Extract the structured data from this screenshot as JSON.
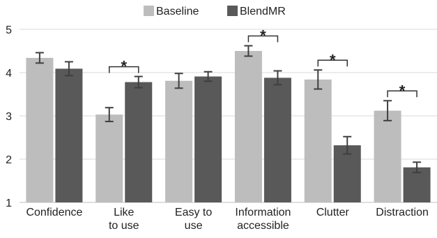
{
  "chart_data": {
    "type": "bar",
    "categories": [
      [
        "Confidence"
      ],
      [
        "Like",
        "to use"
      ],
      [
        "Easy to",
        "use"
      ],
      [
        "Information",
        "accessible"
      ],
      [
        "Clutter"
      ],
      [
        "Distraction"
      ]
    ],
    "series": [
      {
        "name": "Baseline",
        "color": "#bdbdbd",
        "values": [
          4.34,
          3.03,
          3.81,
          4.5,
          3.84,
          3.12
        ],
        "errors": [
          0.12,
          0.16,
          0.17,
          0.12,
          0.22,
          0.23
        ]
      },
      {
        "name": "BlendMR",
        "color": "#595959",
        "values": [
          4.09,
          3.78,
          3.91,
          3.88,
          2.32,
          1.81
        ],
        "errors": [
          0.16,
          0.13,
          0.11,
          0.16,
          0.2,
          0.12
        ]
      }
    ],
    "ylim": [
      1,
      5
    ],
    "yticks": [
      "1",
      "2",
      "3",
      "4",
      "5"
    ],
    "grid": true,
    "legend_position": "top",
    "significance": [
      {
        "category_index": 1,
        "label": "*"
      },
      {
        "category_index": 3,
        "label": "*"
      },
      {
        "category_index": 4,
        "label": "*"
      },
      {
        "category_index": 5,
        "label": "*"
      }
    ],
    "colors": {
      "grid": "#d9d9d9",
      "error_bar": "#3f3f3f",
      "bracket": "#333333"
    }
  }
}
